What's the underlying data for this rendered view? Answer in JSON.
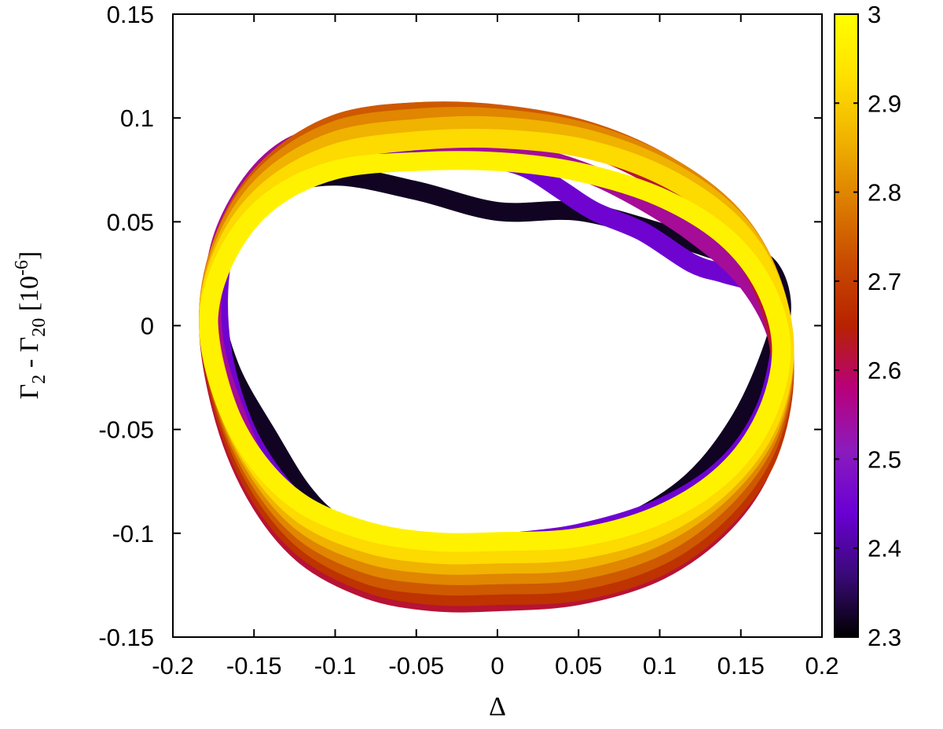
{
  "chart_data": {
    "type": "scatter",
    "title": "",
    "xlabel": "Δ",
    "ylabel": {
      "base": "Γ",
      "sub1": "2",
      "minus": " - Γ",
      "sub2": "20",
      "bracket_open": " [10",
      "sup": "-6",
      "bracket_close": "]"
    },
    "xlim": [
      -0.2,
      0.2
    ],
    "ylim": [
      -0.15,
      0.15
    ],
    "xticks": [
      {
        "value": -0.2,
        "label": "-0.2"
      },
      {
        "value": -0.15,
        "label": "-0.15"
      },
      {
        "value": -0.1,
        "label": "-0.1"
      },
      {
        "value": -0.05,
        "label": "-0.05"
      },
      {
        "value": 0,
        "label": "0"
      },
      {
        "value": 0.05,
        "label": "0.05"
      },
      {
        "value": 0.1,
        "label": "0.1"
      },
      {
        "value": 0.15,
        "label": "0.15"
      },
      {
        "value": 0.2,
        "label": "0.2"
      }
    ],
    "yticks": [
      {
        "value": -0.15,
        "label": "-0.15"
      },
      {
        "value": -0.1,
        "label": "-0.1"
      },
      {
        "value": -0.05,
        "label": "-0.05"
      },
      {
        "value": 0,
        "label": "0"
      },
      {
        "value": 0.05,
        "label": "0.05"
      },
      {
        "value": 0.1,
        "label": "0.1"
      },
      {
        "value": 0.15,
        "label": "0.15"
      }
    ],
    "grid": false,
    "colorbar": {
      "min": 2.3,
      "max": 3,
      "ticks": [
        {
          "value": 2.3,
          "label": "2.3"
        },
        {
          "value": 2.4,
          "label": "2.4"
        },
        {
          "value": 2.5,
          "label": "2.5"
        },
        {
          "value": 2.6,
          "label": "2.6"
        },
        {
          "value": 2.7,
          "label": "2.7"
        },
        {
          "value": 2.8,
          "label": "2.8"
        },
        {
          "value": 2.9,
          "label": "2.9"
        },
        {
          "value": 3,
          "label": "3"
        }
      ],
      "colors": [
        "#000000",
        "#3a0a78",
        "#6a00d4",
        "#8c1bbd",
        "#b8007a",
        "#b72200",
        "#c84a00",
        "#dd7e00",
        "#f0b300",
        "#ffe000",
        "#ffff00"
      ]
    },
    "loops": [
      {
        "c": 2.32,
        "x": [
          0.0,
          0.04,
          0.08,
          0.12,
          0.15,
          0.17,
          0.175,
          0.165,
          0.14,
          0.1,
          0.05,
          0.0,
          -0.05,
          -0.1,
          -0.14,
          -0.165,
          -0.175,
          -0.165,
          -0.14,
          -0.12,
          -0.1,
          -0.07,
          -0.04,
          -0.02,
          0.0,
          0.02,
          0.04,
          0.06,
          0.0
        ],
        "y": [
          -0.106,
          -0.103,
          -0.095,
          -0.075,
          -0.045,
          -0.01,
          0.012,
          0.03,
          0.035,
          0.045,
          0.055,
          0.055,
          0.065,
          0.072,
          0.065,
          0.045,
          0.015,
          -0.02,
          -0.055,
          -0.08,
          -0.095,
          -0.105,
          -0.11,
          -0.111,
          -0.11,
          -0.108,
          -0.107,
          -0.106,
          -0.106
        ]
      },
      {
        "c": 2.45,
        "x": [
          0.0,
          0.05,
          0.1,
          0.14,
          0.165,
          0.175,
          0.17,
          0.16,
          0.14,
          0.12,
          0.09,
          0.06,
          0.04,
          0.02,
          0.0,
          -0.02,
          -0.05,
          -0.08,
          -0.1,
          -0.13,
          -0.155,
          -0.17,
          -0.17,
          -0.155,
          -0.13,
          -0.1,
          -0.06,
          -0.03,
          0.0
        ],
        "y": [
          -0.105,
          -0.1,
          -0.088,
          -0.068,
          -0.04,
          -0.005,
          0.01,
          0.02,
          0.025,
          0.03,
          0.045,
          0.055,
          0.065,
          0.075,
          0.08,
          0.083,
          0.085,
          0.088,
          0.09,
          0.08,
          0.06,
          0.03,
          -0.01,
          -0.05,
          -0.08,
          -0.1,
          -0.11,
          -0.108,
          -0.105
        ]
      },
      {
        "c": 2.55,
        "x": [
          0.0,
          0.05,
          0.1,
          0.14,
          0.165,
          0.175,
          0.17,
          0.15,
          0.12,
          0.09,
          0.06,
          0.03,
          0.0,
          -0.03,
          -0.07,
          -0.1,
          -0.13,
          -0.155,
          -0.172,
          -0.175,
          -0.16,
          -0.135,
          -0.1,
          -0.06,
          -0.02,
          0.0
        ],
        "y": [
          -0.128,
          -0.125,
          -0.112,
          -0.09,
          -0.06,
          -0.025,
          0.0,
          0.025,
          0.045,
          0.06,
          0.072,
          0.08,
          0.085,
          0.088,
          0.09,
          0.092,
          0.085,
          0.065,
          0.035,
          -0.005,
          -0.045,
          -0.085,
          -0.11,
          -0.123,
          -0.128,
          -0.128
        ]
      },
      {
        "c": 2.62,
        "x": [
          0.0,
          0.05,
          0.1,
          0.14,
          0.165,
          0.175,
          0.165,
          0.14,
          0.1,
          0.05,
          0.0,
          -0.05,
          -0.1,
          -0.14,
          -0.165,
          -0.178,
          -0.17,
          -0.15,
          -0.12,
          -0.08,
          -0.04,
          0.0
        ],
        "y": [
          -0.133,
          -0.13,
          -0.118,
          -0.095,
          -0.065,
          -0.025,
          0.015,
          0.045,
          0.07,
          0.088,
          0.097,
          0.1,
          0.095,
          0.075,
          0.045,
          0.005,
          -0.04,
          -0.08,
          -0.11,
          -0.127,
          -0.133,
          -0.133
        ]
      },
      {
        "c": 2.68,
        "x": [
          0.0,
          0.05,
          0.1,
          0.14,
          0.167,
          0.177,
          0.168,
          0.145,
          0.105,
          0.055,
          0.0,
          -0.05,
          -0.1,
          -0.14,
          -0.166,
          -0.178,
          -0.17,
          -0.15,
          -0.12,
          -0.08,
          -0.04,
          0.0
        ],
        "y": [
          -0.13,
          -0.128,
          -0.116,
          -0.093,
          -0.062,
          -0.022,
          0.018,
          0.05,
          0.075,
          0.093,
          0.101,
          0.103,
          0.097,
          0.077,
          0.047,
          0.007,
          -0.037,
          -0.077,
          -0.107,
          -0.124,
          -0.13,
          -0.13
        ]
      },
      {
        "c": 2.74,
        "x": [
          0.0,
          0.05,
          0.1,
          0.14,
          0.167,
          0.177,
          0.168,
          0.145,
          0.105,
          0.055,
          0.0,
          -0.05,
          -0.1,
          -0.14,
          -0.166,
          -0.178,
          -0.17,
          -0.15,
          -0.12,
          -0.08,
          -0.04,
          0.0
        ],
        "y": [
          -0.125,
          -0.123,
          -0.111,
          -0.088,
          -0.057,
          -0.018,
          0.021,
          0.052,
          0.077,
          0.094,
          0.102,
          0.103,
          0.097,
          0.077,
          0.047,
          0.008,
          -0.034,
          -0.073,
          -0.103,
          -0.12,
          -0.125,
          -0.125
        ]
      },
      {
        "c": 2.8,
        "x": [
          0.0,
          0.05,
          0.1,
          0.14,
          0.167,
          0.177,
          0.168,
          0.145,
          0.105,
          0.055,
          0.0,
          -0.05,
          -0.1,
          -0.14,
          -0.166,
          -0.178,
          -0.17,
          -0.15,
          -0.12,
          -0.08,
          -0.04,
          0.0
        ],
        "y": [
          -0.12,
          -0.118,
          -0.106,
          -0.083,
          -0.053,
          -0.015,
          0.023,
          0.053,
          0.077,
          0.093,
          0.1,
          0.1,
          0.094,
          0.075,
          0.046,
          0.008,
          -0.032,
          -0.07,
          -0.099,
          -0.115,
          -0.12,
          -0.12
        ]
      },
      {
        "c": 2.86,
        "x": [
          0.0,
          0.05,
          0.1,
          0.14,
          0.167,
          0.177,
          0.168,
          0.145,
          0.105,
          0.055,
          0.0,
          -0.05,
          -0.1,
          -0.14,
          -0.166,
          -0.178,
          -0.17,
          -0.15,
          -0.12,
          -0.08,
          -0.04,
          0.0
        ],
        "y": [
          -0.115,
          -0.113,
          -0.101,
          -0.079,
          -0.05,
          -0.013,
          0.023,
          0.052,
          0.075,
          0.09,
          0.096,
          0.095,
          0.089,
          0.071,
          0.043,
          0.007,
          -0.031,
          -0.067,
          -0.095,
          -0.11,
          -0.115,
          -0.115
        ]
      },
      {
        "c": 2.92,
        "x": [
          0.0,
          0.05,
          0.1,
          0.14,
          0.167,
          0.177,
          0.168,
          0.145,
          0.105,
          0.055,
          0.0,
          -0.05,
          -0.1,
          -0.14,
          -0.166,
          -0.178,
          -0.17,
          -0.15,
          -0.12,
          -0.08,
          -0.04,
          0.0
        ],
        "y": [
          -0.11,
          -0.108,
          -0.097,
          -0.076,
          -0.047,
          -0.012,
          0.022,
          0.049,
          0.071,
          0.085,
          0.09,
          0.089,
          0.083,
          0.066,
          0.04,
          0.006,
          -0.031,
          -0.065,
          -0.091,
          -0.105,
          -0.11,
          -0.11
        ]
      },
      {
        "c": 2.97,
        "x": [
          0.0,
          0.05,
          0.1,
          0.14,
          0.165,
          0.175,
          0.165,
          0.14,
          0.1,
          0.05,
          0.0,
          -0.05,
          -0.1,
          -0.14,
          -0.166,
          -0.178,
          -0.17,
          -0.15,
          -0.12,
          -0.08,
          -0.04,
          0.0
        ],
        "y": [
          -0.104,
          -0.102,
          -0.091,
          -0.071,
          -0.044,
          -0.012,
          0.018,
          0.043,
          0.062,
          0.074,
          0.079,
          0.079,
          0.075,
          0.06,
          0.035,
          0.003,
          -0.032,
          -0.063,
          -0.086,
          -0.099,
          -0.104,
          -0.104
        ]
      }
    ]
  }
}
